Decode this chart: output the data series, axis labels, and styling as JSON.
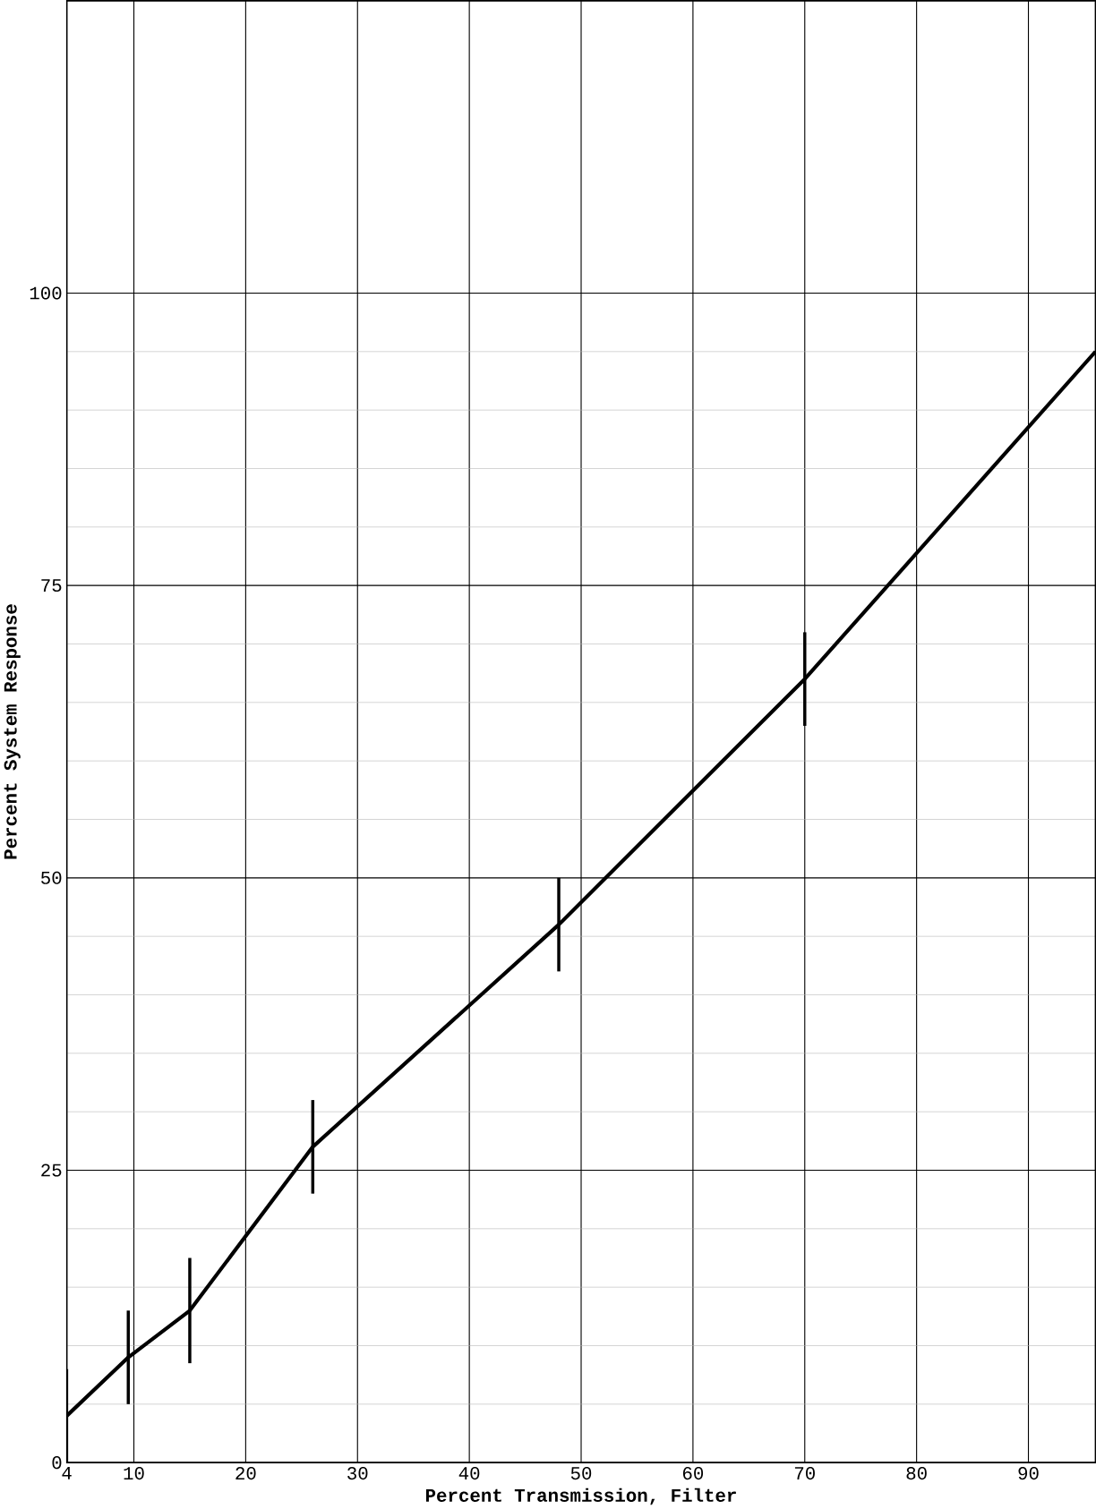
{
  "chart_data": {
    "type": "line",
    "xlabel": "Percent Transmission, Filter",
    "ylabel": "Percent System Response",
    "x": [
      4,
      9.5,
      15,
      26,
      48,
      70,
      96
    ],
    "series": [
      {
        "color": "#000000",
        "values": [
          4,
          9,
          13,
          27,
          46,
          67,
          95
        ],
        "errors": [
          4,
          4,
          4.5,
          4,
          4,
          4,
          null
        ]
      }
    ],
    "xlim": [
      4,
      96
    ],
    "ylim": [
      0,
      125
    ],
    "xticks": [
      4,
      10,
      20,
      30,
      40,
      50,
      60,
      70,
      80,
      90
    ],
    "yticks": [
      0,
      25,
      50,
      75,
      100
    ],
    "grid": true,
    "marker": "none",
    "line_style": "solid"
  }
}
